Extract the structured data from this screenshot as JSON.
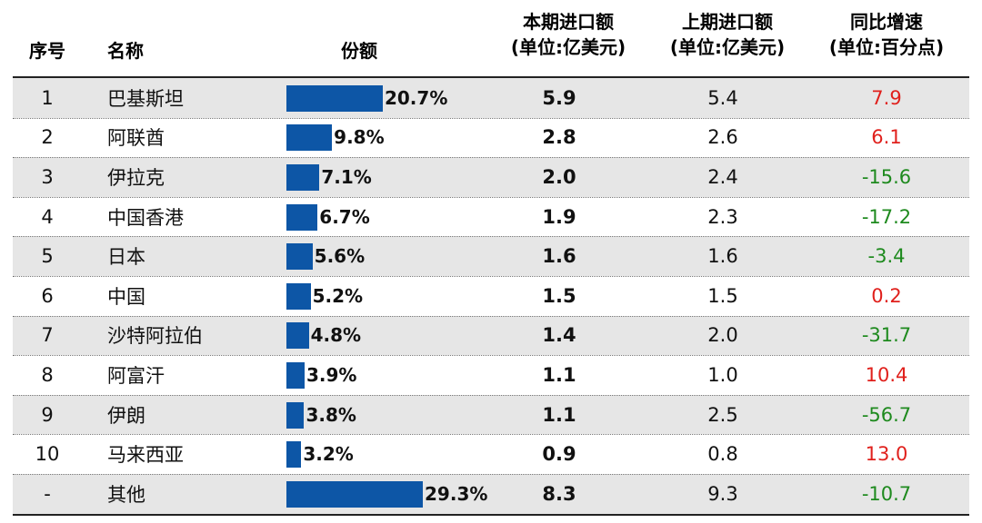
{
  "table": {
    "headers": {
      "rank": "序号",
      "name": "名称",
      "share": "份额",
      "current": {
        "title": "本期进口额",
        "unit": "(单位:亿美元)"
      },
      "previous": {
        "title": "上期进口额",
        "unit": "(单位:亿美元)"
      },
      "yoy": {
        "title": "同比增速",
        "unit": "(单位:百分点)"
      }
    },
    "bar_color": "#0d56a6",
    "rows": [
      {
        "rank": "1",
        "name": "巴基斯坦",
        "share": 20.7,
        "share_label": "20.7%",
        "current": "5.9",
        "previous": "5.4",
        "yoy": "7.9"
      },
      {
        "rank": "2",
        "name": "阿联酋",
        "share": 9.8,
        "share_label": "9.8%",
        "current": "2.8",
        "previous": "2.6",
        "yoy": "6.1"
      },
      {
        "rank": "3",
        "name": "伊拉克",
        "share": 7.1,
        "share_label": "7.1%",
        "current": "2.0",
        "previous": "2.4",
        "yoy": "-15.6"
      },
      {
        "rank": "4",
        "name": "中国香港",
        "share": 6.7,
        "share_label": "6.7%",
        "current": "1.9",
        "previous": "2.3",
        "yoy": "-17.2"
      },
      {
        "rank": "5",
        "name": "日本",
        "share": 5.6,
        "share_label": "5.6%",
        "current": "1.6",
        "previous": "1.6",
        "yoy": "-3.4"
      },
      {
        "rank": "6",
        "name": "中国",
        "share": 5.2,
        "share_label": "5.2%",
        "current": "1.5",
        "previous": "1.5",
        "yoy": "0.2"
      },
      {
        "rank": "7",
        "name": "沙特阿拉伯",
        "share": 4.8,
        "share_label": "4.8%",
        "current": "1.4",
        "previous": "2.0",
        "yoy": "-31.7"
      },
      {
        "rank": "8",
        "name": "阿富汗",
        "share": 3.9,
        "share_label": "3.9%",
        "current": "1.1",
        "previous": "1.0",
        "yoy": "10.4"
      },
      {
        "rank": "9",
        "name": "伊朗",
        "share": 3.8,
        "share_label": "3.8%",
        "current": "1.1",
        "previous": "2.5",
        "yoy": "-56.7"
      },
      {
        "rank": "10",
        "name": "马来西亚",
        "share": 3.2,
        "share_label": "3.2%",
        "current": "0.9",
        "previous": "0.8",
        "yoy": "13.0"
      },
      {
        "rank": "-",
        "name": "其他",
        "share": 29.3,
        "share_label": "29.3%",
        "current": "8.3",
        "previous": "9.3",
        "yoy": "-10.7"
      }
    ]
  }
}
